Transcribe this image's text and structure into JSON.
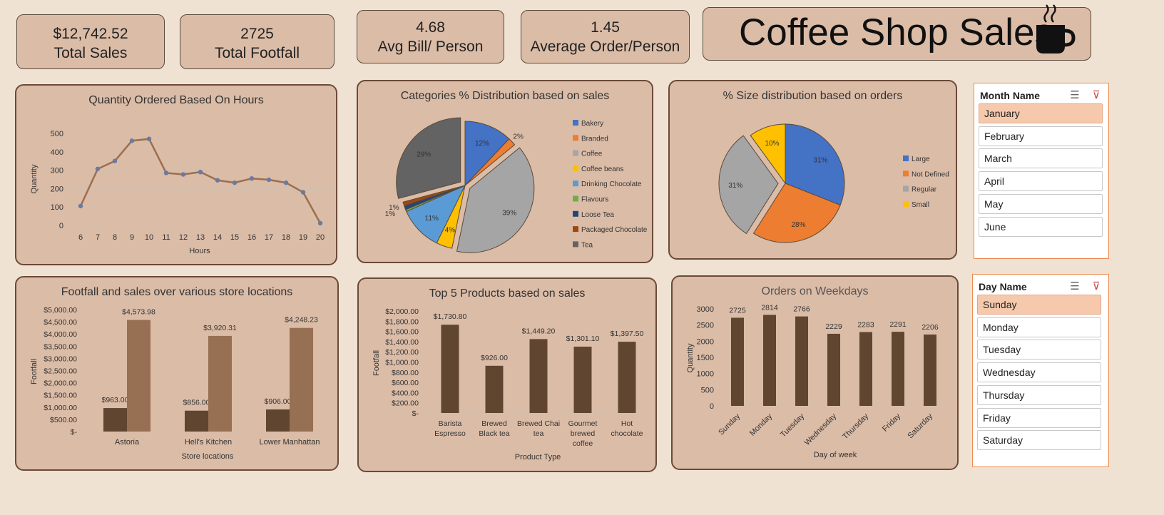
{
  "kpis": [
    {
      "value": "$12,742.52",
      "label": "Total Sales"
    },
    {
      "value": "2725",
      "label": "Total Footfall"
    },
    {
      "value": "4.68",
      "label": "Avg Bill/ Person"
    },
    {
      "value": "1.45",
      "label": "Average Order/Person"
    }
  ],
  "dashboard_title": "Coffee Shop Sales",
  "title_icon": "coffee-cup-icon",
  "colors": {
    "panel_bg": "#dbbca7",
    "page_bg": "#efe2d3",
    "border": "#6b4a37",
    "line": "#9b6e4f",
    "marker": "#6a7aa0",
    "bar_dark": "#604630",
    "bar_light": "#976f52",
    "slicer_selected": "#f6c9ad",
    "slicer_border": "#ee8a50"
  },
  "slicers": {
    "month": {
      "header": "Month Name",
      "items": [
        "January",
        "February",
        "March",
        "April",
        "May",
        "June"
      ],
      "selected": "January"
    },
    "day": {
      "header": "Day Name",
      "items": [
        "Sunday",
        "Monday",
        "Tuesday",
        "Wednesday",
        "Thursday",
        "Friday",
        "Saturday"
      ],
      "selected": "Sunday"
    },
    "icons": [
      "multi-select-icon",
      "clear-filter-icon"
    ]
  },
  "chart_data": [
    {
      "id": "hours",
      "type": "line",
      "title": "Quantity Ordered Based On Hours",
      "xlabel": "Hours",
      "ylabel": "Quantity",
      "x": [
        "6",
        "7",
        "8",
        "9",
        "10",
        "11",
        "12",
        "13",
        "14",
        "15",
        "16",
        "17",
        "18",
        "19",
        "20"
      ],
      "values": [
        105,
        307,
        350,
        460,
        470,
        285,
        277,
        290,
        245,
        232,
        255,
        248,
        232,
        180,
        12
      ],
      "ylim": [
        0,
        500
      ],
      "yticks": [
        "0",
        "100",
        "200",
        "300",
        "400",
        "500"
      ],
      "grid": true
    },
    {
      "id": "categories",
      "type": "pie",
      "title": "Categories % Distribution based on sales",
      "legend_position": "right",
      "labels": [
        "Bakery",
        "Branded",
        "Coffee",
        "Coffee beans",
        "Drinking Chocolate",
        "Flavours",
        "Loose Tea",
        "Packaged Chocolate",
        "Tea"
      ],
      "values": [
        12,
        2,
        39,
        4,
        11,
        0.5,
        1,
        1,
        29
      ],
      "data_labels": [
        "12%",
        "2%",
        "39%",
        "4%",
        "11%",
        "",
        "1%",
        "1%",
        "29%"
      ],
      "colors": [
        "#4472c4",
        "#ed7d31",
        "#a5a5a5",
        "#ffc000",
        "#5b9bd5",
        "#70ad47",
        "#264478",
        "#9e480e",
        "#636363"
      ]
    },
    {
      "id": "sizes",
      "type": "pie",
      "title": "% Size distribution based on orders",
      "legend_position": "right",
      "labels": [
        "Large",
        "Not Defined",
        "Regular",
        "Small"
      ],
      "values": [
        31,
        28,
        31,
        10
      ],
      "data_labels": [
        "31%",
        "28%",
        "31%",
        "10%"
      ],
      "colors": [
        "#4472c4",
        "#ed7d31",
        "#a5a5a5",
        "#ffc000"
      ]
    },
    {
      "id": "stores",
      "type": "bar",
      "title": "Footfall and sales over various store locations",
      "xlabel": "Store locations",
      "ylabel": "Footfall",
      "categories": [
        "Astoria",
        "Hell's Kitchen",
        "Lower Manhattan"
      ],
      "series": [
        {
          "values": [
            963.0,
            856.0,
            906.0
          ],
          "labels": [
            "$963.00",
            "$856.00",
            "$906.00"
          ]
        },
        {
          "values": [
            4573.98,
            3920.31,
            4248.23
          ],
          "labels": [
            "$4,573.98",
            "$3,920.31",
            "$4,248.23"
          ]
        }
      ],
      "ylim": [
        0,
        5000
      ],
      "yticks": [
        "$-",
        "$500.00",
        "$1,000.00",
        "$1,500.00",
        "$2,000.00",
        "$2,500.00",
        "$3,000.00",
        "$3,500.00",
        "$4,000.00",
        "$4,500.00",
        "$5,000.00"
      ]
    },
    {
      "id": "products",
      "type": "bar",
      "title": "Top 5 Products based on sales",
      "xlabel": "Product Type",
      "ylabel": "Footfall",
      "categories": [
        [
          "Barista",
          "Espresso"
        ],
        [
          "Brewed",
          "Black tea"
        ],
        [
          "Brewed Chai",
          "tea"
        ],
        [
          "Gourmet",
          "brewed",
          "coffee"
        ],
        [
          "Hot",
          "chocolate"
        ]
      ],
      "values": [
        1730.8,
        926.0,
        1449.2,
        1301.1,
        1397.5
      ],
      "data_labels": [
        "$1,730.80",
        "$926.00",
        "$1,449.20",
        "$1,301.10",
        "$1,397.50"
      ],
      "ylim": [
        0,
        2000
      ],
      "yticks": [
        "$-",
        "$200.00",
        "$400.00",
        "$600.00",
        "$800.00",
        "$1,000.00",
        "$1,200.00",
        "$1,400.00",
        "$1,600.00",
        "$1,800.00",
        "$2,000.00"
      ]
    },
    {
      "id": "weekdays",
      "type": "bar",
      "title": "Orders on Weekdays",
      "xlabel": "Day of week",
      "ylabel": "Quantity",
      "categories": [
        "Sunday",
        "Monday",
        "Tuesday",
        "Wednesday",
        "Thursday",
        "Friday",
        "Saturday"
      ],
      "values": [
        2725,
        2814,
        2766,
        2229,
        2283,
        2291,
        2206
      ],
      "data_labels": [
        "2725",
        "2814",
        "2766",
        "2229",
        "2283",
        "2291",
        "2206"
      ],
      "ylim": [
        0,
        3000
      ],
      "yticks": [
        "0",
        "500",
        "1000",
        "1500",
        "2000",
        "2500",
        "3000"
      ]
    }
  ]
}
